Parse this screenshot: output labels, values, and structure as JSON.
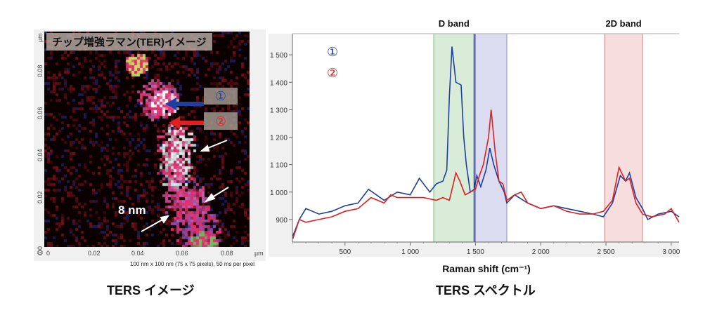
{
  "image_panel": {
    "title": "チップ増強ラマン(TER)イメージ",
    "markers": [
      "①",
      "②"
    ],
    "scale_label": "8 nm",
    "y_ticks": [
      "0",
      "0.02",
      "0.04",
      "0.06",
      "0.08",
      "µm"
    ],
    "x_ticks": [
      "0",
      "0.02",
      "0.04",
      "0.06",
      "0.08",
      "µm"
    ],
    "caption": "100 nm x 100 nm (75 x 75 pixels), 50 ms per pixel",
    "bottom_title": "TERS イメージ"
  },
  "spectrum_panel": {
    "bottom_title": "TERS スペクトル"
  },
  "chart_data": {
    "type": "line",
    "xlabel": "Raman shift (cm⁻¹)",
    "ylabel": "",
    "xlim": [
      97,
      3060
    ],
    "ylim": [
      818,
      1577
    ],
    "x_ticks": [
      500,
      1000,
      1500,
      2000,
      2500,
      3000
    ],
    "x_tick_labels": [
      "500",
      "1 000",
      "1 500",
      "2 000",
      "2 500",
      "3 000"
    ],
    "y_ticks": [
      900,
      1000,
      1100,
      1200,
      1300,
      1400,
      1500
    ],
    "y_tick_labels": [
      "900",
      "1 000",
      "1 100",
      "1 200",
      "1 300",
      "1 400",
      "1 500"
    ],
    "grid": false,
    "legend": {
      "placement": "top-left",
      "entries": [
        {
          "label": "①",
          "color": "#1f3fa0"
        },
        {
          "label": "②",
          "color": "#e02020"
        }
      ]
    },
    "bands": [
      {
        "label": "D band",
        "from": 1180,
        "to": 1490,
        "color": "#d8ecd8",
        "edge": "#7cc07c"
      },
      {
        "label": "",
        "from": 1500,
        "to": 1740,
        "color": "#dcdcf0",
        "edge": "#8890c8"
      },
      {
        "label": "2D band",
        "from": 2490,
        "to": 2780,
        "color": "#f6dede",
        "edge": "#d88080"
      }
    ],
    "series": [
      {
        "name": "①",
        "color": "#1f3fa0",
        "x": [
          100,
          150,
          200,
          300,
          400,
          500,
          600,
          680,
          800,
          900,
          1000,
          1070,
          1150,
          1200,
          1250,
          1280,
          1300,
          1320,
          1350,
          1390,
          1410,
          1430,
          1460,
          1490,
          1510,
          1540,
          1580,
          1610,
          1640,
          1680,
          1720,
          1740,
          1800,
          1900,
          2000,
          2100,
          2200,
          2300,
          2400,
          2480,
          2550,
          2610,
          2650,
          2680,
          2730,
          2780,
          2820,
          2900,
          3000,
          3060
        ],
        "y": [
          840,
          900,
          940,
          920,
          930,
          950,
          960,
          1010,
          970,
          1000,
          990,
          1050,
          1000,
          1030,
          1040,
          1080,
          1350,
          1530,
          1400,
          1390,
          1200,
          1100,
          1000,
          1010,
          1060,
          1020,
          1080,
          1160,
          1100,
          1040,
          1000,
          960,
          990,
          960,
          940,
          950,
          940,
          930,
          920,
          910,
          960,
          1060,
          1040,
          1070,
          980,
          940,
          900,
          920,
          930,
          910
        ]
      },
      {
        "name": "②",
        "color": "#e02020",
        "x": [
          100,
          150,
          200,
          300,
          400,
          500,
          600,
          700,
          800,
          850,
          900,
          1000,
          1100,
          1200,
          1250,
          1300,
          1350,
          1380,
          1420,
          1500,
          1530,
          1560,
          1600,
          1620,
          1650,
          1680,
          1710,
          1740,
          1800,
          1850,
          1900,
          2000,
          2100,
          2200,
          2300,
          2400,
          2480,
          2550,
          2600,
          2650,
          2680,
          2730,
          2780,
          2850,
          2950,
          3000,
          3060
        ],
        "y": [
          830,
          900,
          890,
          900,
          910,
          930,
          940,
          980,
          960,
          990,
          980,
          980,
          980,
          970,
          980,
          970,
          1070,
          1040,
          990,
          1010,
          1060,
          1100,
          1200,
          1300,
          1150,
          1040,
          1030,
          970,
          990,
          1000,
          960,
          940,
          950,
          930,
          920,
          920,
          930,
          970,
          1090,
          1040,
          1050,
          960,
          920,
          910,
          920,
          940,
          890
        ]
      }
    ]
  }
}
